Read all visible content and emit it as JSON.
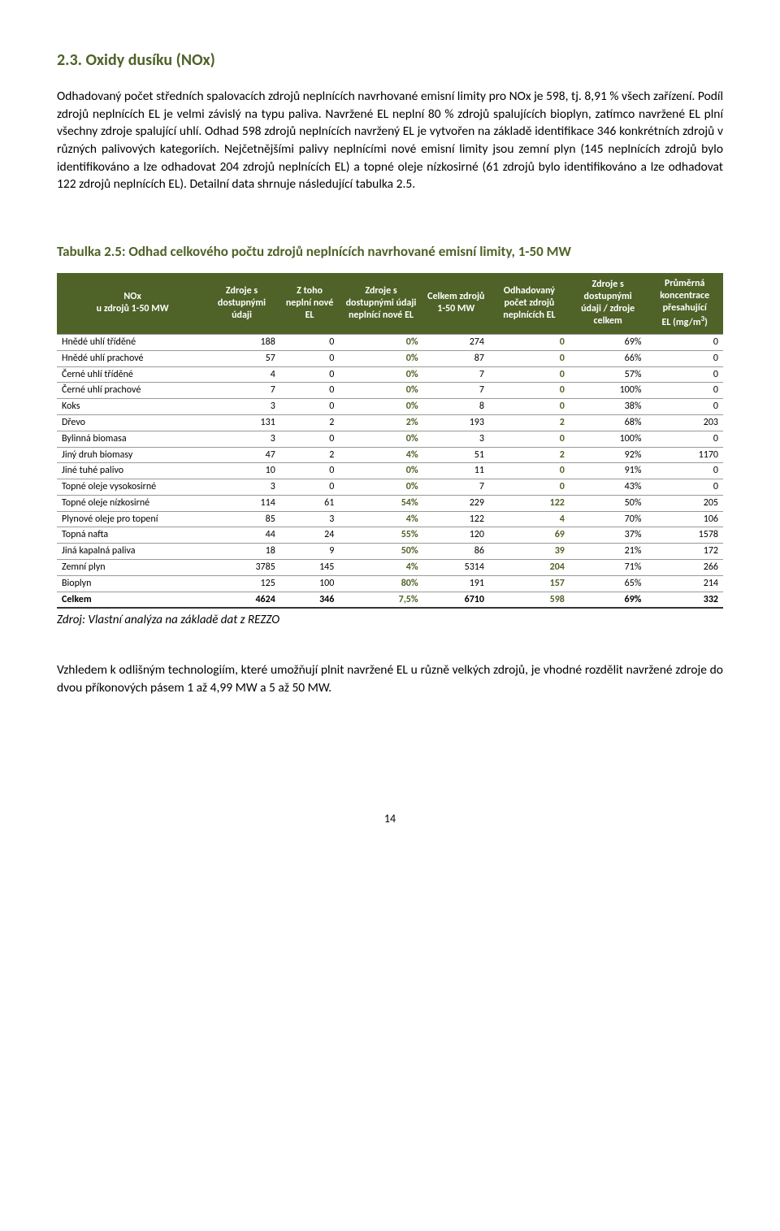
{
  "heading": "2.3.   Oxidy dusíku (NOx)",
  "para1": "Odhadovaný počet středních spalovacích zdrojů neplnících navrhované emisní limity pro NOx je 598, tj. 8,91 % všech zařízení. Podíl zdrojů neplnících EL je velmi závislý na typu paliva. Navržené EL neplní 80 % zdrojů spalujících bioplyn, zatímco navržené EL plní všechny zdroje spalující uhlí. Odhad 598 zdrojů neplnících navržený EL je vytvořen na základě identifikace 346 konkrétních zdrojů v různých palivových kategoriích. Nejčetnějšími palivy neplnícími nové emisní limity jsou zemní plyn (145 neplnících zdrojů bylo identifikováno a lze odhadovat 204 zdrojů neplnících EL) a topné oleje nízkosirné (61 zdrojů bylo identifikováno a lze odhadovat 122 zdrojů neplnících EL). Detailní data shrnuje následující tabulka 2.5.",
  "table_title": "Tabulka 2.5: Odhad celkového počtu zdrojů neplnících navrhované emisní limity, 1-50 MW",
  "headers": {
    "c1a": "NOx",
    "c1b": "u zdrojů 1-50 MW",
    "c2": "Zdroje s dostupnými údaji",
    "c3": "Z toho neplní nové EL",
    "c4": "Zdroje s dostupnými údaji neplnící nové EL",
    "c5": "Celkem zdrojů 1-50 MW",
    "c6": "Odhadovaný počet zdrojů neplnících EL",
    "c7": "Zdroje s dostupnými údaji / zdroje celkem",
    "c8a": "Průměrná koncentrace přesahující",
    "c8b": "EL (mg/m",
    "c8c": ")"
  },
  "rows": [
    {
      "label": "Hnědé uhlí tříděné",
      "c2": "188",
      "c3": "0",
      "c4": "0%",
      "c5": "274",
      "c6": "0",
      "c7": "69%",
      "c8": "0"
    },
    {
      "label": "Hnědé uhlí prachové",
      "c2": "57",
      "c3": "0",
      "c4": "0%",
      "c5": "87",
      "c6": "0",
      "c7": "66%",
      "c8": "0"
    },
    {
      "label": "Černé uhlí tříděné",
      "c2": "4",
      "c3": "0",
      "c4": "0%",
      "c5": "7",
      "c6": "0",
      "c7": "57%",
      "c8": "0"
    },
    {
      "label": "Černé uhlí prachové",
      "c2": "7",
      "c3": "0",
      "c4": "0%",
      "c5": "7",
      "c6": "0",
      "c7": "100%",
      "c8": "0"
    },
    {
      "label": "Koks",
      "c2": "3",
      "c3": "0",
      "c4": "0%",
      "c5": "8",
      "c6": "0",
      "c7": "38%",
      "c8": "0"
    },
    {
      "label": "Dřevo",
      "c2": "131",
      "c3": "2",
      "c4": "2%",
      "c5": "193",
      "c6": "2",
      "c7": "68%",
      "c8": "203"
    },
    {
      "label": "Bylinná biomasa",
      "c2": "3",
      "c3": "0",
      "c4": "0%",
      "c5": "3",
      "c6": "0",
      "c7": "100%",
      "c8": "0"
    },
    {
      "label": "Jiný druh biomasy",
      "c2": "47",
      "c3": "2",
      "c4": "4%",
      "c5": "51",
      "c6": "2",
      "c7": "92%",
      "c8": "1170"
    },
    {
      "label": "Jiné tuhé palivo",
      "c2": "10",
      "c3": "0",
      "c4": "0%",
      "c5": "11",
      "c6": "0",
      "c7": "91%",
      "c8": "0"
    },
    {
      "label": "Topné oleje vysokosirné",
      "c2": "3",
      "c3": "0",
      "c4": "0%",
      "c5": "7",
      "c6": "0",
      "c7": "43%",
      "c8": "0"
    },
    {
      "label": "Topné oleje nízkosirné",
      "c2": "114",
      "c3": "61",
      "c4": "54%",
      "c5": "229",
      "c6": "122",
      "c7": "50%",
      "c8": "205"
    },
    {
      "label": "Plynové oleje pro topení",
      "c2": "85",
      "c3": "3",
      "c4": "4%",
      "c5": "122",
      "c6": "4",
      "c7": "70%",
      "c8": "106"
    },
    {
      "label": "Topná nafta",
      "c2": "44",
      "c3": "24",
      "c4": "55%",
      "c5": "120",
      "c6": "69",
      "c7": "37%",
      "c8": "1578"
    },
    {
      "label": "Jiná kapalná paliva",
      "c2": "18",
      "c3": "9",
      "c4": "50%",
      "c5": "86",
      "c6": "39",
      "c7": "21%",
      "c8": "172"
    },
    {
      "label": "Zemní plyn",
      "c2": "3785",
      "c3": "145",
      "c4": "4%",
      "c5": "5314",
      "c6": "204",
      "c7": "71%",
      "c8": "266"
    },
    {
      "label": "Bioplyn",
      "c2": "125",
      "c3": "100",
      "c4": "80%",
      "c5": "191",
      "c6": "157",
      "c7": "65%",
      "c8": "214"
    }
  ],
  "total": {
    "label": "Celkem",
    "c2": "4624",
    "c3": "346",
    "c4": "7,5%",
    "c5": "6710",
    "c6": "598",
    "c7": "69%",
    "c8": "332"
  },
  "source_note": "Zdroj: Vlastní analýza na základě dat z REZZO",
  "closing": "Vzhledem k odlišným technologiím, které umožňují plnit navržené EL u různě velkých zdrojů, je vhodné rozdělit navržené zdroje do dvou příkonových pásem 1 až 4,99 MW a 5 až 50 MW.",
  "page_number": "14"
}
